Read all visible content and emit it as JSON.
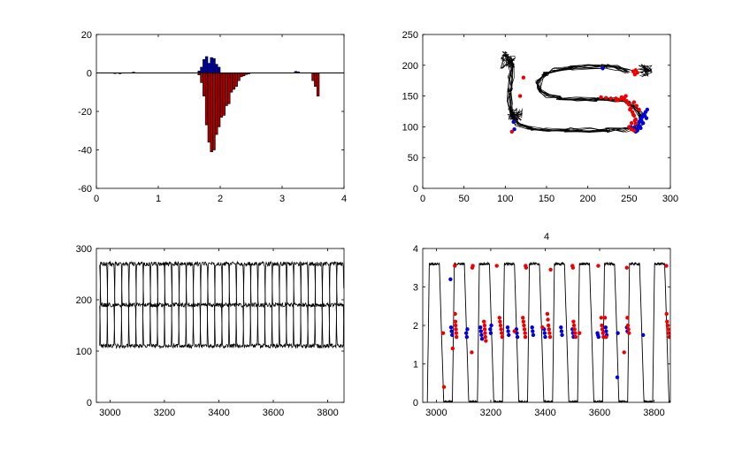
{
  "chart_data": [
    {
      "type": "bar",
      "title": "",
      "xlim": [
        0,
        4
      ],
      "ylim": [
        -60,
        20
      ],
      "xticks": [
        "0",
        "1",
        "2",
        "3",
        "4"
      ],
      "yticks": [
        "-60",
        "-40",
        "-20",
        "0",
        "20"
      ],
      "series": [
        {
          "color": "#0000aa",
          "x": [
            1.66,
            1.7,
            1.74,
            1.78,
            1.82,
            1.86,
            1.9,
            1.94,
            1.98,
            3.22,
            3.26
          ],
          "values": [
            1.0,
            3.0,
            7.0,
            8.5,
            5.0,
            8.0,
            7.5,
            4.5,
            3.0,
            0.8,
            0.6
          ]
        },
        {
          "color": "#aa0000",
          "x": [
            0.3,
            0.38,
            0.6,
            1.66,
            1.7,
            1.74,
            1.78,
            1.82,
            1.86,
            1.9,
            1.94,
            1.98,
            2.02,
            2.06,
            2.1,
            2.14,
            2.18,
            2.22,
            2.26,
            2.3,
            2.34,
            2.38,
            2.42,
            2.46,
            3.5,
            3.54,
            3.58
          ],
          "values": [
            -0.3,
            -0.4,
            0.4,
            -1.0,
            -5.0,
            -12.0,
            -27.0,
            -36.0,
            -41.0,
            -40.0,
            -32.0,
            -28.0,
            -23.0,
            -22.0,
            -17.0,
            -16.0,
            -10.0,
            -8.5,
            -7.0,
            -4.0,
            -2.0,
            -1.5,
            -0.8,
            -0.5,
            -4.0,
            -7.0,
            -12.0
          ]
        }
      ]
    },
    {
      "type": "scatter",
      "title": "",
      "xlim": [
        0,
        300
      ],
      "ylim": [
        0,
        250
      ],
      "xticks": [
        "0",
        "50",
        "100",
        "150",
        "200",
        "250",
        "300"
      ],
      "yticks": [
        "0",
        "50",
        "100",
        "150",
        "200",
        "250"
      ],
      "trajectory_color": "#000000",
      "series": [
        {
          "color": "#0000dd",
          "x": [
            110,
            111,
            218,
            252,
            255,
            258,
            260,
            262,
            264,
            266,
            268,
            270,
            272,
            261,
            265,
            269,
            258,
            263,
            267,
            271,
            260,
            264
          ],
          "y": [
            108,
            96,
            195,
            100,
            98,
            104,
            96,
            108,
            112,
            116,
            120,
            124,
            128,
            102,
            110,
            118,
            92,
            100,
            106,
            114,
            94,
            98
          ]
        },
        {
          "color": "#ee0000",
          "x": [
            108,
            118,
            122,
            216,
            222,
            228,
            234,
            240,
            244,
            248,
            250,
            252,
            254,
            256,
            258,
            247,
            251,
            255,
            258,
            250,
            253,
            256,
            244,
            249,
            236,
            241,
            246,
            256,
            259,
            262,
            257,
            253,
            257,
            260,
            255,
            258
          ],
          "y": [
            92,
            150,
            180,
            148,
            147,
            146,
            146,
            145,
            147,
            140,
            136,
            130,
            124,
            118,
            112,
            142,
            128,
            120,
            105,
            100,
            96,
            94,
            145,
            138,
            143,
            148,
            150,
            140,
            134,
            128,
            110,
            106,
            185,
            188,
            190,
            192
          ]
        }
      ]
    },
    {
      "type": "line",
      "title": "",
      "xlim": [
        2950,
        3860
      ],
      "ylim": [
        0,
        300
      ],
      "xticks": [
        "3000",
        "3200",
        "3400",
        "3600",
        "3800"
      ],
      "yticks": [
        "0",
        "100",
        "200",
        "300"
      ],
      "period": 79,
      "x_start": 2962,
      "x_end": 3860,
      "series": [
        {
          "color": "#000000",
          "levels": [
            270,
            190,
            110
          ],
          "phase": 0
        },
        {
          "color": "#000000",
          "levels": [
            190,
            110,
            270
          ],
          "phase": 26
        },
        {
          "color": "#000000",
          "levels": [
            110,
            270,
            190
          ],
          "phase": 52
        }
      ]
    },
    {
      "type": "scatter",
      "title": "4",
      "xlim": [
        2950,
        3860
      ],
      "ylim": [
        0,
        4
      ],
      "xticks": [
        "3000",
        "3200",
        "3400",
        "3600",
        "3800"
      ],
      "yticks": [
        "0",
        "1",
        "2",
        "3",
        "4"
      ],
      "trace": {
        "color": "#000000",
        "period": 92,
        "x_start": 2967,
        "x_end": 3858,
        "high": 3.6,
        "low": 0.0
      },
      "series": [
        {
          "color": "#0000dd",
          "x": [
            3052,
            3054,
            3056,
            3058,
            3110,
            3112,
            3114,
            3162,
            3164,
            3166,
            3168,
            3198,
            3200,
            3202,
            3262,
            3264,
            3266,
            3294,
            3296,
            3298,
            3352,
            3354,
            3356,
            3396,
            3398,
            3400,
            3458,
            3460,
            3462,
            3500,
            3502,
            3504,
            3592,
            3594,
            3596,
            3622,
            3624,
            3626,
            3665,
            3667,
            3700,
            3702,
            3760
          ],
          "y": [
            3.2,
            1.95,
            1.85,
            1.75,
            1.8,
            1.7,
            1.9,
            1.95,
            1.85,
            1.75,
            1.65,
            1.9,
            1.8,
            2.0,
            1.95,
            1.85,
            1.75,
            1.9,
            1.8,
            1.7,
            1.95,
            1.85,
            1.75,
            1.9,
            1.8,
            1.7,
            1.95,
            1.85,
            1.75,
            1.9,
            1.8,
            1.7,
            1.8,
            1.75,
            1.7,
            1.95,
            1.85,
            1.75,
            0.65,
            1.8,
            1.95,
            1.85,
            1.75
          ]
        },
        {
          "color": "#ee0000",
          "x": [
            3025,
            3028,
            3060,
            3068,
            3069,
            3070,
            3071,
            3072,
            3073,
            3074,
            3130,
            3132,
            3134,
            3175,
            3177,
            3178,
            3179,
            3180,
            3182,
            3222,
            3232,
            3234,
            3236,
            3238,
            3240,
            3242,
            3287,
            3318,
            3320,
            3322,
            3324,
            3326,
            3327,
            3328,
            3330,
            3390,
            3408,
            3410,
            3412,
            3414,
            3416,
            3418,
            3420,
            3500,
            3502,
            3504,
            3506,
            3508,
            3510,
            3512,
            3526,
            3595,
            3606,
            3608,
            3610,
            3612,
            3614,
            3620,
            3624,
            3690,
            3700,
            3702,
            3704,
            3706,
            3708,
            3846,
            3848,
            3850,
            3852,
            3854,
            3856,
            3845
          ],
          "y": [
            1.8,
            0.4,
            1.4,
            3.55,
            2.3,
            2.1,
            2.0,
            1.9,
            1.8,
            1.7,
            1.3,
            3.5,
            3.55,
            2.1,
            2.0,
            1.9,
            1.8,
            1.7,
            1.6,
            3.55,
            2.2,
            2.1,
            2.0,
            1.9,
            1.8,
            1.7,
            1.85,
            2.2,
            2.1,
            2.0,
            1.9,
            1.8,
            1.7,
            3.55,
            3.5,
            1.95,
            2.3,
            2.15,
            2.0,
            1.9,
            1.8,
            1.7,
            3.45,
            3.55,
            3.5,
            2.1,
            2.0,
            1.9,
            1.8,
            1.7,
            1.8,
            3.55,
            2.2,
            2.0,
            1.9,
            1.8,
            1.7,
            2.2,
            1.7,
            1.3,
            3.5,
            2.2,
            2.0,
            1.9,
            1.8,
            2.3,
            2.1,
            2.0,
            1.9,
            1.8,
            1.7,
            3.55
          ]
        }
      ]
    }
  ]
}
